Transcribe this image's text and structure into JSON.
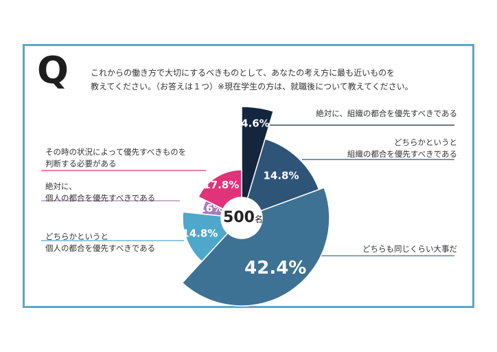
{
  "question": {
    "mark": "Q",
    "line1": "これからの働き方で大切にするべきものとして、あなたの考え方に最も近いものを",
    "line2": "教えてください。（お答えは１つ）※現在学生の方は、就職後について教えてください。"
  },
  "colors": {
    "border": "#5aa6c9",
    "accent_text": "#1e1e1e"
  },
  "chart_data": {
    "type": "pie",
    "center_label": {
      "number": "500",
      "unit": "名"
    },
    "slices": [
      {
        "label_lines": [
          "絶対に、組織の都合を優先すべきである"
        ],
        "value": 4.6,
        "value_label": "4.6%",
        "color": "#13263d",
        "side": "right"
      },
      {
        "label_lines": [
          "どちらかというと",
          "組織の都合を優先すべきである"
        ],
        "value": 14.8,
        "value_label": "14.8%",
        "color": "#2e5478",
        "side": "right"
      },
      {
        "label_lines": [
          "どちらも同じくらい大事だ"
        ],
        "value": 42.4,
        "value_label": "42.4%",
        "color": "#3e7294",
        "side": "right"
      },
      {
        "label_lines": [
          "どちらかというと",
          "個人の都合を優先すべきである"
        ],
        "value": 14.8,
        "value_label": "14.8%",
        "color": "#4fa7cb",
        "side": "left"
      },
      {
        "label_lines": [
          "絶対に、",
          "個人の都合を優先すべきである"
        ],
        "value": 5.6,
        "value_label": "5.6%",
        "color": "#a77db8",
        "side": "left"
      },
      {
        "label_lines": [
          "その時の状況によって優先すべきものを",
          "判断する必要がある"
        ],
        "value": 17.8,
        "value_label": "17.8%",
        "color": "#e0337a",
        "side": "left"
      }
    ]
  }
}
